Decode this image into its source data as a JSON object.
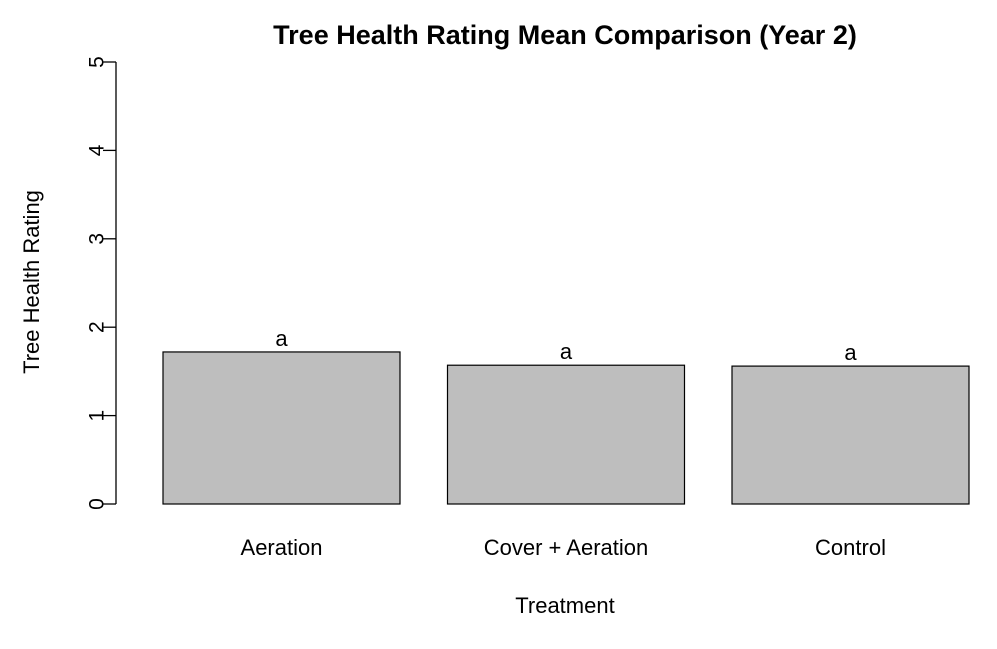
{
  "chart_data": {
    "type": "bar",
    "title": "Tree Health Rating Mean Comparison (Year 2)",
    "xlabel": "Treatment",
    "ylabel": "Tree Health Rating",
    "categories": [
      "Aeration",
      "Cover + Aeration",
      "Control"
    ],
    "values": [
      1.72,
      1.57,
      1.56
    ],
    "bar_labels": [
      "a",
      "a",
      "a"
    ],
    "ylim": [
      0,
      5
    ],
    "yticks": [
      "0",
      "1",
      "2",
      "3",
      "4",
      "5"
    ],
    "grid": false,
    "bar_color": "#bebebe",
    "bar_border_color": "#000000"
  }
}
